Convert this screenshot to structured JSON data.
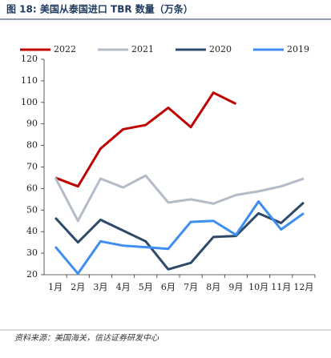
{
  "chart_data": {
    "type": "line",
    "title": "图 18:  美国从泰国进口 TBR 数量（万条）",
    "source": "资料来源：美国海关，信达证券研发中心",
    "categories": [
      "1月",
      "2月",
      "3月",
      "4月",
      "5月",
      "6月",
      "7月",
      "8月",
      "9月",
      "10月",
      "11月",
      "12月"
    ],
    "series": [
      {
        "name": "2022",
        "color": "#c00000",
        "values": [
          65,
          61,
          78.5,
          87.5,
          89.5,
          97.5,
          88.5,
          104.5,
          99.3,
          null,
          null,
          null
        ]
      },
      {
        "name": "2021",
        "color": "#b4bcc8",
        "values": [
          65,
          45,
          64.6,
          60.5,
          66,
          53.5,
          55,
          53,
          57,
          58.7,
          61,
          64.6
        ]
      },
      {
        "name": "2020",
        "color": "#2e4a6b",
        "values": [
          46.4,
          35,
          45.5,
          40.5,
          35.5,
          22.5,
          25.5,
          37.5,
          38,
          48.5,
          44,
          53.5
        ]
      },
      {
        "name": "2019",
        "color": "#3d8ef0",
        "values": [
          33,
          20.5,
          35.5,
          33.5,
          32.8,
          32,
          44.5,
          45,
          38.5,
          54,
          41,
          48.5
        ]
      }
    ],
    "ylim": [
      20,
      120
    ],
    "yticks": [
      20,
      30,
      40,
      50,
      60,
      70,
      80,
      90,
      100,
      110,
      120
    ],
    "legend": "top"
  }
}
